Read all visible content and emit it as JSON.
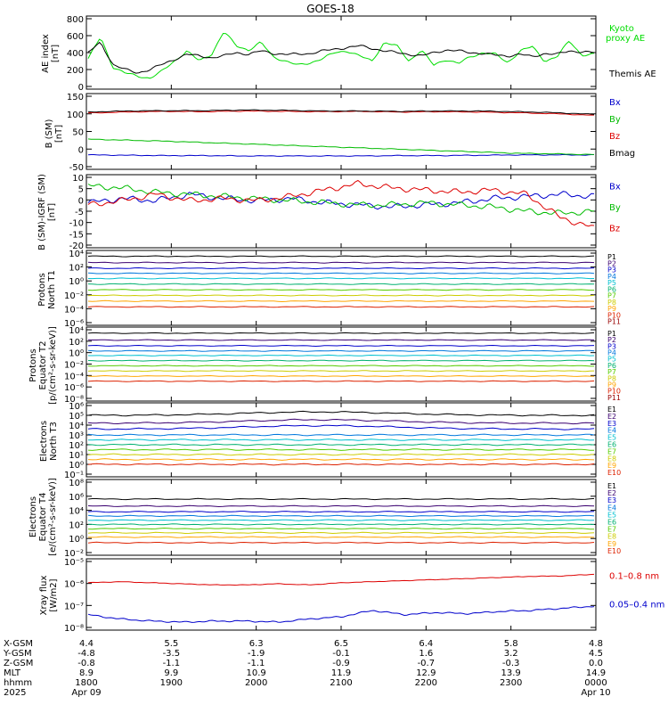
{
  "title": "GOES-18",
  "chart_data": [
    {
      "type": "line",
      "panel": "AE index",
      "ylabel": [
        "AE index",
        "[nT]"
      ],
      "yticks": [
        "800",
        "600",
        "400",
        "200",
        "0"
      ],
      "ylim": [
        0,
        800
      ],
      "legend": [
        {
          "label": "Kyoto proxy AE",
          "color": "#00dd00"
        },
        {
          "label": "Themis AE",
          "color": "#000000"
        }
      ],
      "series": [
        {
          "name": "Kyoto proxy AE",
          "color": "#00dd00",
          "values": [
            330,
            580,
            230,
            160,
            120,
            100,
            180,
            300,
            420,
            300,
            380,
            650,
            480,
            430,
            520,
            350,
            300,
            250,
            280,
            330,
            400,
            420,
            360,
            300,
            520,
            480,
            300,
            430,
            250,
            320,
            270,
            350,
            400,
            380,
            280,
            420,
            470,
            300,
            350,
            540,
            370,
            380
          ]
        },
        {
          "name": "Themis AE",
          "color": "#000000",
          "values": [
            400,
            520,
            260,
            200,
            160,
            200,
            260,
            320,
            380,
            360,
            340,
            360,
            400,
            380,
            420,
            390,
            380,
            380,
            390,
            420,
            440,
            460,
            480,
            450,
            420,
            400,
            380,
            360,
            400,
            430,
            420,
            400,
            390,
            370,
            360,
            380,
            350,
            390,
            380,
            420,
            410,
            400
          ]
        }
      ]
    },
    {
      "type": "line",
      "panel": "B (SM)",
      "ylabel": [
        "B (SM)",
        "[nT]"
      ],
      "yticks": [
        "150",
        "100",
        "50",
        "0",
        "-50"
      ],
      "ylim": [
        -60,
        150
      ],
      "legend": [
        {
          "label": "Bx",
          "color": "#0000cc"
        },
        {
          "label": "By",
          "color": "#00bb00"
        },
        {
          "label": "Bz",
          "color": "#dd0000"
        },
        {
          "label": "Bmag",
          "color": "#000000"
        }
      ],
      "series": [
        {
          "name": "Bx",
          "color": "#0000cc",
          "values": [
            -25,
            -26,
            -27,
            -27,
            -28,
            -28,
            -28,
            -28,
            -27,
            -27,
            -26,
            -25,
            -25,
            -25
          ]
        },
        {
          "name": "By",
          "color": "#00bb00",
          "values": [
            22,
            19,
            16,
            12,
            8,
            4,
            0,
            -4,
            -8,
            -12,
            -16,
            -20,
            -22,
            -24
          ]
        },
        {
          "name": "Bz",
          "color": "#dd0000",
          "values": [
            100,
            103,
            105,
            104,
            106,
            105,
            104,
            105,
            103,
            104,
            103,
            101,
            98,
            93
          ]
        },
        {
          "name": "Bmag",
          "color": "#000000",
          "values": [
            103,
            106,
            107,
            107,
            109,
            108,
            106,
            106,
            105,
            106,
            106,
            104,
            101,
            96
          ]
        }
      ]
    },
    {
      "type": "line",
      "panel": "B (SM)-IGRF (SM)",
      "ylabel": [
        "B (SM)-IGRF (SM)",
        "[nT]"
      ],
      "yticks": [
        "10",
        "5",
        "0",
        "-5",
        "-10",
        "-15",
        "-20"
      ],
      "ylim": [
        -22,
        10
      ],
      "legend": [
        {
          "label": "Bx",
          "color": "#0000cc"
        },
        {
          "label": "By",
          "color": "#00bb00"
        },
        {
          "label": "Bz",
          "color": "#dd0000"
        }
      ],
      "series": [
        {
          "name": "Bx",
          "color": "#0000cc",
          "values": [
            -2,
            0,
            -1,
            2,
            0,
            -1,
            0,
            -2,
            -3,
            -4,
            -3,
            -2,
            0,
            1,
            2,
            1
          ]
        },
        {
          "name": "By",
          "color": "#00bb00",
          "values": [
            6,
            5,
            3,
            2,
            1,
            0,
            -1,
            -2,
            -3,
            -3,
            -2,
            -3,
            -4,
            -6,
            -7,
            -6
          ]
        },
        {
          "name": "Bz",
          "color": "#dd0000",
          "values": [
            -3,
            -1,
            2,
            -1,
            0,
            -1,
            1,
            4,
            7,
            5,
            4,
            3,
            4,
            2,
            -9,
            -14
          ]
        }
      ]
    },
    {
      "type": "line",
      "panel": "Protons North T1",
      "ylabel": [
        "Protons",
        "North T1"
      ],
      "yticks": [
        "10⁴",
        "10²",
        "10⁰",
        "10⁻²",
        "10⁻⁴",
        "10⁻⁶"
      ],
      "log": true,
      "ylim_exp": [
        -7,
        4
      ],
      "channels": [
        {
          "label": "P1",
          "color": "#000000",
          "log10": 3.5
        },
        {
          "label": "P2",
          "color": "#3a0070",
          "log10": 2.5
        },
        {
          "label": "P3",
          "color": "#0000cc",
          "log10": 1.6
        },
        {
          "label": "P4",
          "color": "#0077dd",
          "log10": 0.8
        },
        {
          "label": "P5",
          "color": "#00c0d0",
          "log10": 0.0
        },
        {
          "label": "P6",
          "color": "#00b070",
          "log10": -0.9
        },
        {
          "label": "P7",
          "color": "#55cc00",
          "log10": -1.8
        },
        {
          "label": "P8",
          "color": "#cccc00",
          "log10": -2.7
        },
        {
          "label": "P9",
          "color": "#ffa500",
          "log10": -3.6
        },
        {
          "label": "P10",
          "color": "#dd2200",
          "log10": -4.5
        },
        {
          "label": "P11",
          "color": "#990000",
          "log10": null
        }
      ]
    },
    {
      "type": "line",
      "panel": "Protons Equator T2",
      "ylabel": [
        "Protons",
        "Equator T2",
        "[p/(cm²-s-sr-keV)]"
      ],
      "yticks": [
        "10⁴",
        "10²",
        "10⁰",
        "10⁻²",
        "10⁻⁴",
        "10⁻⁶",
        "10⁻⁸"
      ],
      "log": true,
      "ylim_exp": [
        -8,
        4
      ],
      "channels": [
        {
          "label": "P1",
          "color": "#000000",
          "log10": 3.4
        },
        {
          "label": "P2",
          "color": "#3a0070",
          "log10": 2.2
        },
        {
          "label": "P3",
          "color": "#0000cc",
          "log10": 1.2
        },
        {
          "label": "P4",
          "color": "#0077dd",
          "log10": 0.3
        },
        {
          "label": "P5",
          "color": "#00c0d0",
          "log10": -0.5
        },
        {
          "label": "P6",
          "color": "#00b070",
          "log10": -1.4
        },
        {
          "label": "P7",
          "color": "#55cc00",
          "log10": -2.3
        },
        {
          "label": "P8",
          "color": "#cccc00",
          "log10": -3.2
        },
        {
          "label": "P9",
          "color": "#ffa500",
          "log10": -4.1
        },
        {
          "label": "P10",
          "color": "#dd2200",
          "log10": -5.0
        },
        {
          "label": "P11",
          "color": "#990000",
          "log10": null
        }
      ]
    },
    {
      "type": "line",
      "panel": "Electrons North T3",
      "ylabel": [
        "Electrons",
        "North T3"
      ],
      "yticks": [
        "10⁶",
        "10⁵",
        "10⁴",
        "10³",
        "10²",
        "10¹",
        "10⁰",
        "10⁻¹"
      ],
      "log": true,
      "ylim_exp": [
        -1,
        6
      ],
      "channels": [
        {
          "label": "E1",
          "color": "#000000",
          "log10": 5.0
        },
        {
          "label": "E2",
          "color": "#3a0070",
          "log10": 4.2
        },
        {
          "label": "E3",
          "color": "#0000cc",
          "log10": 3.6
        },
        {
          "label": "E4",
          "color": "#0077dd",
          "log10": 3.0
        },
        {
          "label": "E5",
          "color": "#00c0d0",
          "log10": 2.5
        },
        {
          "label": "E6",
          "color": "#00b070",
          "log10": 2.0
        },
        {
          "label": "E7",
          "color": "#55cc00",
          "log10": 1.5
        },
        {
          "label": "E8",
          "color": "#cccc00",
          "log10": 1.0
        },
        {
          "label": "E9",
          "color": "#ffa500",
          "log10": 0.5
        },
        {
          "label": "E10",
          "color": "#dd2200",
          "log10": 0.0
        }
      ]
    },
    {
      "type": "line",
      "panel": "Electrons Equator T4",
      "ylabel": [
        "Electrons",
        "Equator T4",
        "[e/(cm²-s-sr-keV)]"
      ],
      "yticks": [
        "10⁸",
        "10⁶",
        "10⁴",
        "10²",
        "10⁰",
        "10⁻²"
      ],
      "log": true,
      "ylim_exp": [
        -2,
        8
      ],
      "channels": [
        {
          "label": "E1",
          "color": "#000000",
          "log10": 5.6
        },
        {
          "label": "E2",
          "color": "#3a0070",
          "log10": 4.6
        },
        {
          "label": "E3",
          "color": "#0000cc",
          "log10": 3.8
        },
        {
          "label": "E4",
          "color": "#0077dd",
          "log10": 3.2
        },
        {
          "label": "E5",
          "color": "#00c0d0",
          "log10": 2.6
        },
        {
          "label": "E6",
          "color": "#00b070",
          "log10": 2.0
        },
        {
          "label": "E7",
          "color": "#55cc00",
          "log10": 1.4
        },
        {
          "label": "E8",
          "color": "#cccc00",
          "log10": 0.8
        },
        {
          "label": "E9",
          "color": "#ffa500",
          "log10": 0.2
        },
        {
          "label": "E10",
          "color": "#dd2200",
          "log10": -0.6
        }
      ]
    },
    {
      "type": "line",
      "panel": "Xray flux",
      "ylabel": [
        "Xray flux",
        "[W/m2]"
      ],
      "yticks": [
        "10⁻⁵",
        "10⁻⁶",
        "10⁻⁷",
        "10⁻⁸"
      ],
      "log": true,
      "ylim_exp": [
        -8.1,
        -5
      ],
      "legend": [
        {
          "label": "0.1–0.8 nm",
          "color": "#dd0000"
        },
        {
          "label": "0.05–0.4 nm",
          "color": "#0000cc"
        }
      ],
      "series": [
        {
          "name": "0.1–0.8 nm",
          "color": "#dd0000",
          "values_log10": [
            -6.0,
            -5.95,
            -6.0,
            -6.05,
            -6.1,
            -6.1,
            -6.05,
            -6.1,
            -6.0,
            -5.95,
            -5.9,
            -5.85,
            -5.8,
            -5.75,
            -5.7,
            -5.68,
            -5.6
          ]
        },
        {
          "name": "0.05–0.4 nm",
          "color": "#0000cc",
          "values_log10": [
            -7.5,
            -7.7,
            -7.8,
            -7.85,
            -7.8,
            -7.8,
            -7.85,
            -7.7,
            -7.6,
            -7.3,
            -7.5,
            -7.4,
            -7.45,
            -7.35,
            -7.3,
            -7.2,
            -7.1
          ]
        }
      ]
    }
  ],
  "xaxis": {
    "row_labels": [
      "X-GSM",
      "Y-GSM",
      "Z-GSM",
      "MLT",
      "hhmm",
      "2025"
    ],
    "columns": [
      {
        "x_gsm": "4.4",
        "y_gsm": "-4.8",
        "z_gsm": "-0.8",
        "mlt": "8.9",
        "hhmm": "1800",
        "date": "Apr 09"
      },
      {
        "x_gsm": "5.5",
        "y_gsm": "-3.5",
        "z_gsm": "-1.1",
        "mlt": "9.9",
        "hhmm": "1900",
        "date": ""
      },
      {
        "x_gsm": "6.3",
        "y_gsm": "-1.9",
        "z_gsm": "-1.1",
        "mlt": "10.9",
        "hhmm": "2000",
        "date": ""
      },
      {
        "x_gsm": "6.5",
        "y_gsm": "-0.1",
        "z_gsm": "-0.9",
        "mlt": "11.9",
        "hhmm": "2100",
        "date": ""
      },
      {
        "x_gsm": "6.4",
        "y_gsm": "1.6",
        "z_gsm": "-0.7",
        "mlt": "12.9",
        "hhmm": "2200",
        "date": ""
      },
      {
        "x_gsm": "5.8",
        "y_gsm": "3.2",
        "z_gsm": "-0.3",
        "mlt": "13.9",
        "hhmm": "2300",
        "date": ""
      },
      {
        "x_gsm": "4.8",
        "y_gsm": "4.5",
        "z_gsm": "0.0",
        "mlt": "14.9",
        "hhmm": "0000",
        "date": "Apr 10"
      }
    ]
  }
}
